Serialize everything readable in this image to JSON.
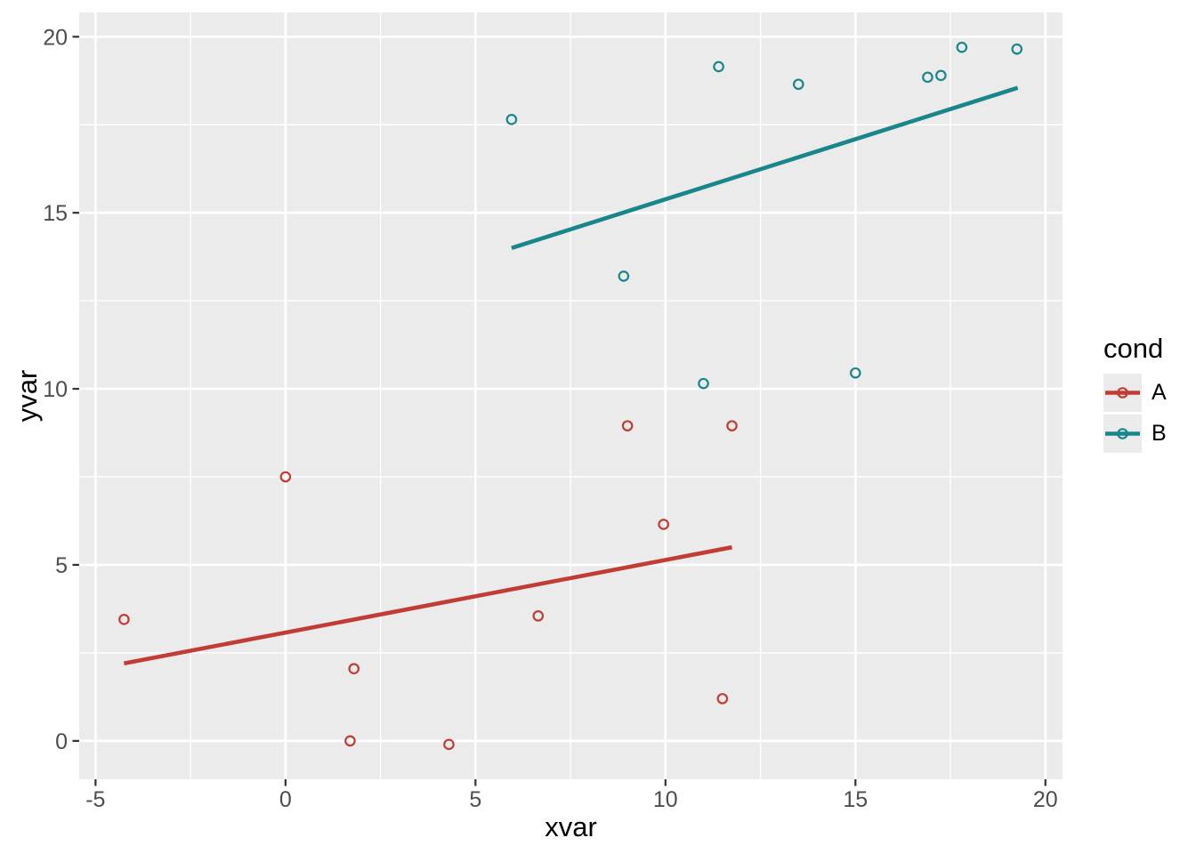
{
  "figure": {
    "x_axis_title": "xvar",
    "y_axis_title": "yvar"
  },
  "legend": {
    "title": "cond",
    "entries": [
      {
        "label": "A",
        "color": "#C13C35"
      },
      {
        "label": "B",
        "color": "#19868B"
      }
    ]
  },
  "chart_data": {
    "type": "scatter",
    "title": "",
    "xlabel": "xvar",
    "ylabel": "yvar",
    "xlim": [
      -5.43,
      20.45
    ],
    "ylim": [
      -1.09,
      20.69
    ],
    "x_major_ticks": [
      -5,
      0,
      5,
      10,
      15,
      20
    ],
    "x_minor_ticks": [
      -2.5,
      2.5,
      7.5,
      12.5,
      17.5
    ],
    "y_major_ticks": [
      0,
      5,
      10,
      15,
      20
    ],
    "y_minor_ticks": [
      2.5,
      7.5,
      12.5,
      17.5
    ],
    "grid": true,
    "legend_position": "right",
    "legend_title": "cond",
    "marker": "open-circle",
    "panel_background": "#EBEBEB",
    "grid_color": "#FFFFFF",
    "tick_mark_color": "#333333",
    "tick_label_color": "#4D4D4D",
    "axis_title_color": "#000000",
    "series": [
      {
        "name": "A",
        "color": "#C13C35",
        "points": [
          [
            -4.25,
            3.45
          ],
          [
            0.0,
            7.5
          ],
          [
            1.7,
            0.0
          ],
          [
            1.8,
            2.05
          ],
          [
            4.3,
            -0.1
          ],
          [
            6.65,
            3.55
          ],
          [
            9.0,
            8.95
          ],
          [
            9.95,
            6.15
          ],
          [
            11.5,
            1.2
          ],
          [
            11.75,
            8.95
          ]
        ],
        "regression_line": {
          "from": [
            -4.25,
            2.2
          ],
          "to": [
            11.75,
            5.5
          ]
        }
      },
      {
        "name": "B",
        "color": "#19868B",
        "points": [
          [
            5.95,
            17.65
          ],
          [
            8.9,
            13.2
          ],
          [
            11.0,
            10.15
          ],
          [
            11.4,
            19.15
          ],
          [
            13.5,
            18.65
          ],
          [
            15.0,
            10.45
          ],
          [
            16.9,
            18.85
          ],
          [
            17.25,
            18.9
          ],
          [
            17.8,
            19.7
          ],
          [
            19.25,
            19.65
          ]
        ],
        "regression_line": {
          "from": [
            5.95,
            14.0
          ],
          "to": [
            19.27,
            18.55
          ]
        }
      }
    ]
  }
}
